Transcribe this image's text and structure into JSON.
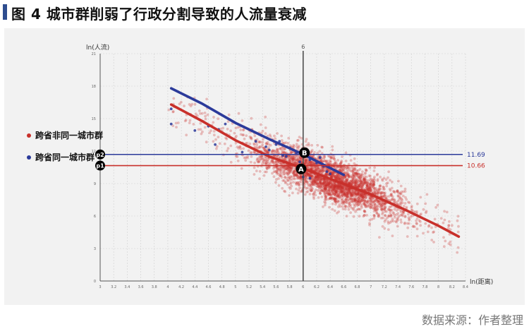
{
  "title": "图 4  城市群削弱了行政分割导致的人流量衰减",
  "source": "数据来源：作者整理",
  "chart_data": {
    "type": "scatter",
    "ylabel": "ln(人流)",
    "xlabel": "ln(距离)",
    "xlim": [
      3.0,
      8.4
    ],
    "ylim": [
      0,
      21
    ],
    "xticks": [
      "3",
      "3.2",
      "3.4",
      "3.6",
      "3.8",
      "4",
      "4.2",
      "4.4",
      "4.6",
      "4.8",
      "5",
      "5.2",
      "5.4",
      "5.6",
      "5.8",
      "6",
      "6.2",
      "6.4",
      "6.6",
      "6.8",
      "7",
      "7.2",
      "7.4",
      "7.6",
      "7.8",
      "8",
      "8.2",
      "8.4"
    ],
    "yticks": [
      "0",
      "3",
      "6",
      "9",
      "12",
      "15",
      "18",
      "21"
    ],
    "vline": {
      "x": 6,
      "label": "6"
    },
    "hlines": [
      {
        "y": 11.69,
        "label": "11.69",
        "color": "#2b3a9a",
        "marker": "p2"
      },
      {
        "y": 10.66,
        "label": "10.66",
        "color": "#c8302b",
        "marker": "p1"
      }
    ],
    "points": [
      {
        "name": "A",
        "x": 5.97,
        "y": 10.35
      },
      {
        "name": "B",
        "x": 6.02,
        "y": 11.85
      }
    ],
    "series": [
      {
        "name": "跨省非同一城市群",
        "color": "#c8302b",
        "fit_x": [
          4.05,
          4.5,
          5.0,
          5.5,
          6.0,
          6.5,
          7.0,
          7.5,
          8.0,
          8.3
        ],
        "fit_y": [
          16.3,
          14.8,
          13.0,
          11.5,
          10.4,
          9.2,
          8.0,
          6.6,
          5.1,
          4.1
        ],
        "scatter_x_range": [
          4.0,
          8.3
        ],
        "scatter_center": 6.4
      },
      {
        "name": "跨省同一城市群",
        "color": "#2b3a9a",
        "fit_x": [
          4.05,
          4.5,
          5.0,
          5.5,
          6.0,
          6.6
        ],
        "fit_y": [
          17.8,
          16.4,
          14.6,
          13.1,
          11.7,
          9.8
        ],
        "scatter": [
          [
            4.05,
            15.9
          ],
          [
            4.05,
            14.5
          ],
          [
            4.6,
            14.3
          ],
          [
            4.75,
            14.0
          ],
          [
            4.7,
            12.6
          ],
          [
            4.85,
            14.5
          ],
          [
            4.4,
            13.9
          ],
          [
            5.1,
            11.9
          ],
          [
            5.3,
            12.9
          ],
          [
            5.45,
            12.4
          ],
          [
            5.5,
            12.1
          ],
          [
            5.6,
            12.6
          ],
          [
            5.65,
            12.9
          ],
          [
            5.7,
            11.6
          ],
          [
            5.8,
            12.3
          ],
          [
            5.9,
            11.8
          ],
          [
            5.75,
            11.5
          ],
          [
            5.95,
            11.0
          ],
          [
            6.0,
            10.5
          ],
          [
            6.05,
            11.9
          ],
          [
            6.1,
            11.2
          ],
          [
            6.2,
            10.9
          ],
          [
            6.25,
            11.4
          ],
          [
            6.3,
            10.6
          ],
          [
            6.1,
            9.5
          ],
          [
            6.35,
            10.1
          ],
          [
            6.4,
            9.9
          ],
          [
            6.0,
            9.6
          ]
        ]
      }
    ]
  }
}
